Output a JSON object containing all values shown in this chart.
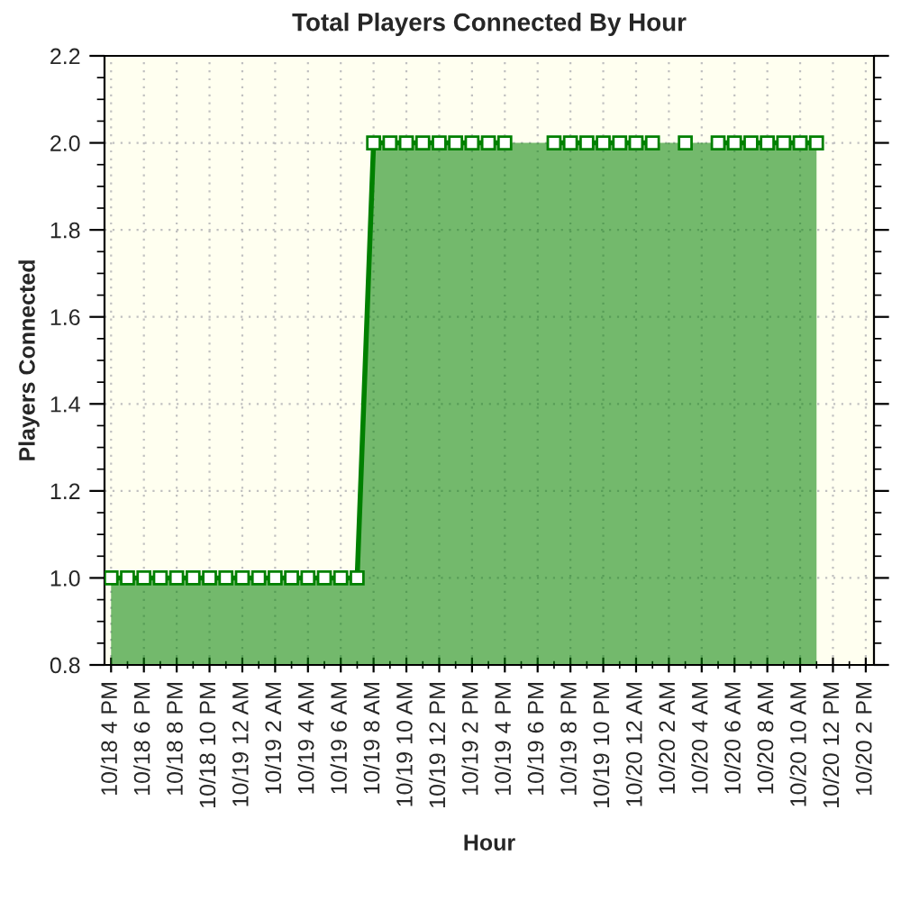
{
  "chart_data": {
    "type": "area",
    "title": "Total Players Connected By Hour",
    "xlabel": "Hour",
    "ylabel": "Players Connected",
    "categories": [
      "10/18 4 PM",
      null,
      "10/18 6 PM",
      null,
      "10/18 8 PM",
      null,
      "10/18 10 PM",
      null,
      "10/19 12 AM",
      null,
      "10/19 2 AM",
      null,
      "10/19 4 AM",
      null,
      "10/19 6 AM",
      null,
      "10/19 8 AM",
      null,
      "10/19 10 AM",
      null,
      "10/19 12 PM",
      null,
      "10/19 2 PM",
      null,
      "10/19 4 PM",
      null,
      "10/19 6 PM",
      null,
      "10/19 8 PM",
      null,
      "10/19 10 PM",
      null,
      "10/20 12 AM",
      null,
      "10/20 2 AM",
      null,
      "10/20 4 AM",
      null,
      "10/20 6 AM",
      null,
      "10/20 8 AM",
      null,
      "10/20 10 AM",
      null,
      "10/20 12 PM",
      null,
      "10/20 2 PM"
    ],
    "series": [
      {
        "color": "#008000",
        "values": [
          1,
          1,
          1,
          1,
          1,
          1,
          1,
          1,
          1,
          1,
          1,
          1,
          1,
          1,
          1,
          1,
          2,
          2,
          2,
          2,
          2,
          2,
          2,
          2,
          2,
          null,
          null,
          2,
          2,
          2,
          2,
          2,
          2,
          2,
          null,
          2,
          null,
          2,
          2,
          2,
          2,
          2,
          2,
          2,
          null,
          null,
          null
        ]
      }
    ],
    "ylim": [
      0.8,
      2.2
    ],
    "yticks": [
      {
        "value": 0.8,
        "label": "0.8"
      },
      {
        "value": 1.0,
        "label": "1.0"
      },
      {
        "value": 1.2,
        "label": "1.2"
      },
      {
        "value": 1.4,
        "label": "1.4"
      },
      {
        "value": 1.6,
        "label": "1.6"
      },
      {
        "value": 1.8,
        "label": "1.8"
      },
      {
        "value": 2.0,
        "label": "2.0"
      },
      {
        "value": 2.2,
        "label": "2.2"
      }
    ],
    "grid": true,
    "marker": "square",
    "line_style": "solid",
    "legend": false
  }
}
